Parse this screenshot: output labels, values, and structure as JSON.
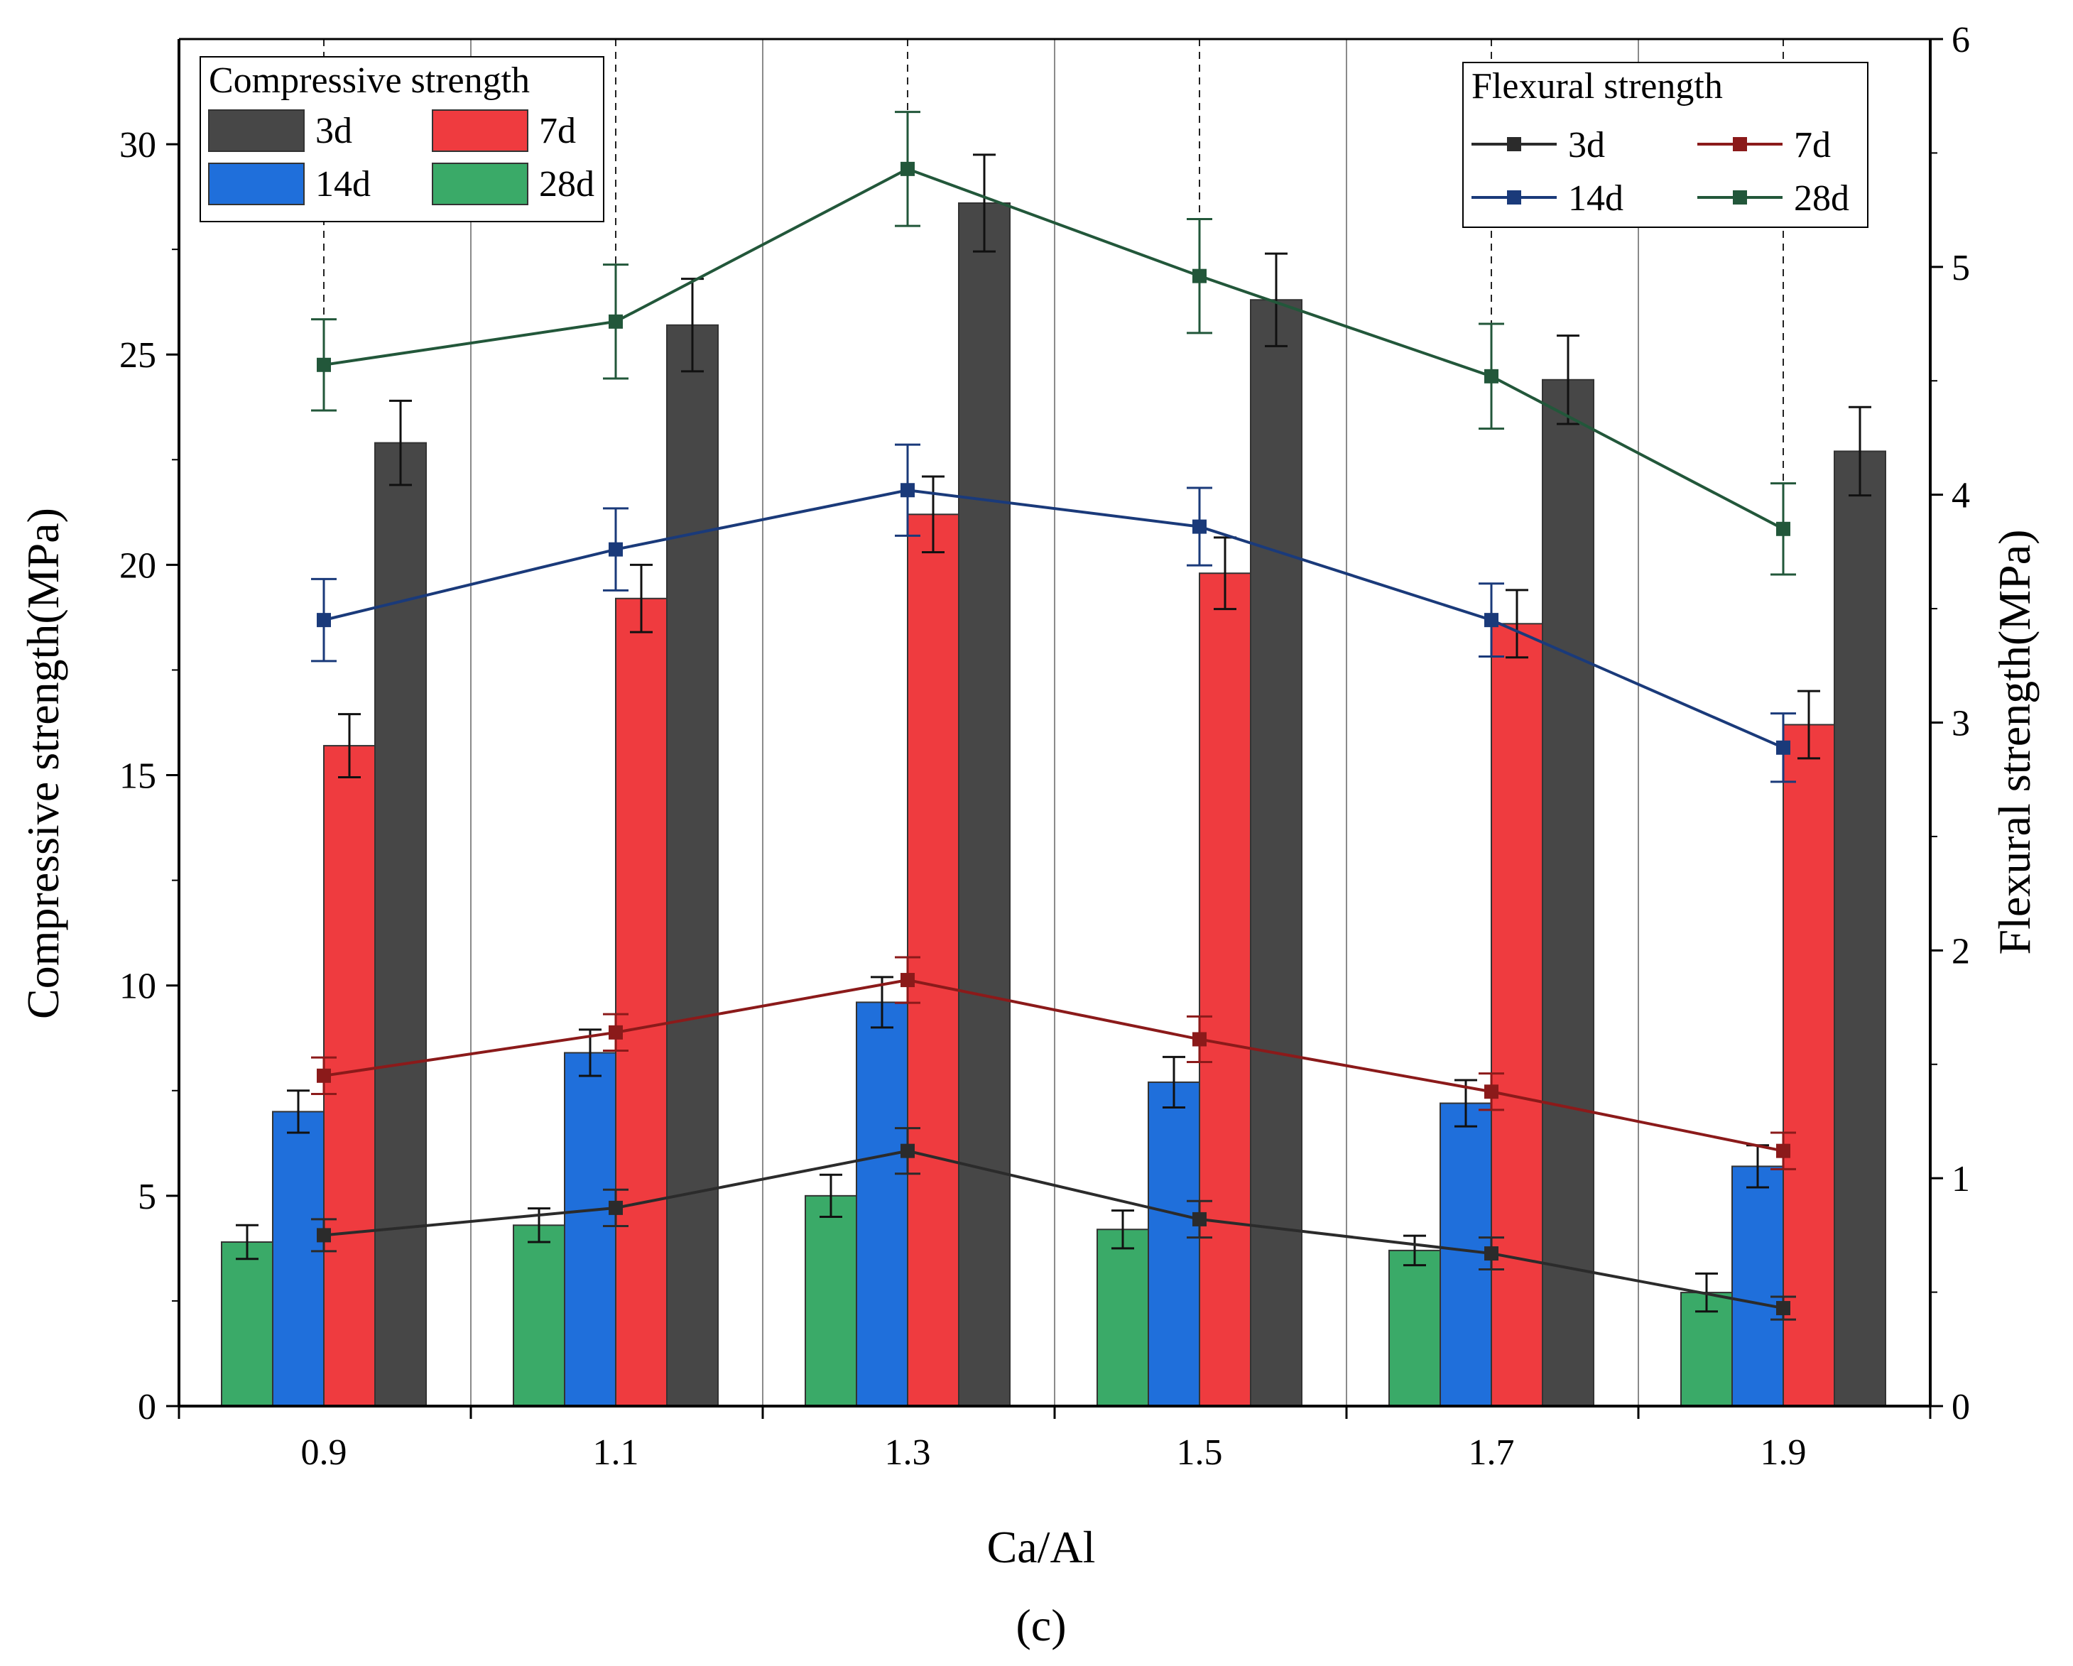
{
  "chart_data": {
    "type": "bar",
    "combined_with": "line",
    "caption": "(c)",
    "xlabel": "Ca/Al",
    "ylabel": "Compressive strength(MPa)",
    "ylabel_right": "Flexural strength(MPa)",
    "categories": [
      "0.9",
      "1.1",
      "1.3",
      "1.5",
      "1.7",
      "1.9"
    ],
    "ylim": [
      0,
      32.5
    ],
    "ylim_right": [
      0,
      6
    ],
    "yticks": [
      "0",
      "5",
      "10",
      "15",
      "20",
      "25",
      "30"
    ],
    "yticks_right": [
      "0",
      "1",
      "2",
      "3",
      "4",
      "5",
      "6"
    ],
    "bar_legend_title": "Compressive strength",
    "line_legend_title": "Flexural strength",
    "bar_series": [
      {
        "name": "28d",
        "color": "#3aaa68",
        "values": [
          3.9,
          4.3,
          5.0,
          4.2,
          3.7,
          2.7
        ],
        "errors": [
          0.4,
          0.4,
          0.5,
          0.45,
          0.35,
          0.45
        ]
      },
      {
        "name": "14d",
        "color": "#1f6fdb",
        "values": [
          7.0,
          8.4,
          9.6,
          7.7,
          7.2,
          5.7
        ],
        "errors": [
          0.5,
          0.55,
          0.6,
          0.6,
          0.55,
          0.5
        ]
      },
      {
        "name": "7d",
        "color": "#ef3b3f",
        "values": [
          15.7,
          19.2,
          21.2,
          19.8,
          18.6,
          16.2
        ],
        "errors": [
          0.75,
          0.8,
          0.9,
          0.85,
          0.8,
          0.8
        ]
      },
      {
        "name": "3d",
        "color": "#474747",
        "values": [
          22.9,
          25.7,
          28.6,
          26.3,
          24.4,
          22.7
        ],
        "errors": [
          1.0,
          1.1,
          1.15,
          1.1,
          1.05,
          1.05
        ]
      }
    ],
    "bar_legend_order": [
      "3d",
      "7d",
      "14d",
      "28d"
    ],
    "line_series": [
      {
        "name": "3d",
        "color": "#2b2b2b",
        "values": [
          0.75,
          0.87,
          1.12,
          0.82,
          0.67,
          0.43
        ],
        "errors": [
          0.07,
          0.08,
          0.1,
          0.08,
          0.07,
          0.05
        ]
      },
      {
        "name": "7d",
        "color": "#8b1a1a",
        "values": [
          1.45,
          1.64,
          1.87,
          1.61,
          1.38,
          1.12
        ],
        "errors": [
          0.08,
          0.08,
          0.1,
          0.1,
          0.08,
          0.08
        ]
      },
      {
        "name": "14d",
        "color": "#1a3a7a",
        "values": [
          3.45,
          3.76,
          4.02,
          3.86,
          3.45,
          2.89
        ],
        "errors": [
          0.18,
          0.18,
          0.2,
          0.17,
          0.16,
          0.15
        ]
      },
      {
        "name": "28d",
        "color": "#22573a",
        "values": [
          4.57,
          4.76,
          5.43,
          4.96,
          4.52,
          3.85
        ],
        "errors": [
          0.2,
          0.25,
          0.25,
          0.25,
          0.23,
          0.2
        ]
      }
    ],
    "line_legend_order": [
      "3d",
      "7d",
      "14d",
      "28d"
    ],
    "grid": "vertical separators between categories",
    "bar_legend_placement": "top-left",
    "line_legend_placement": "top-right"
  }
}
